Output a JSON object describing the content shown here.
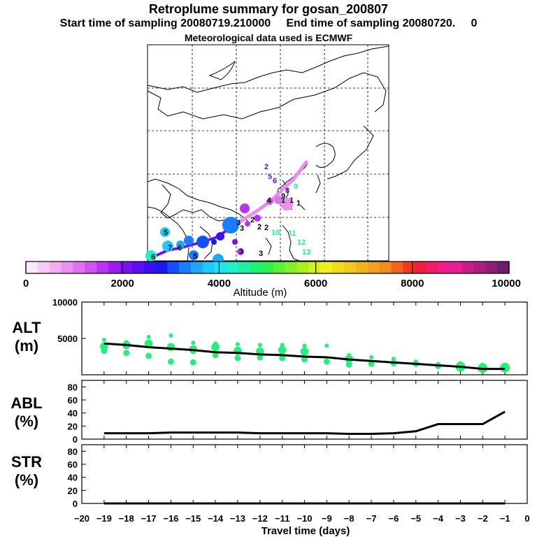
{
  "titles": {
    "line1": "Retroplume summary for gosan_200807",
    "line2": "Start time of sampling 20080719.210000     End time of sampling 20080720.     0",
    "line3": "Meteorological data used is ECMWF"
  },
  "colorbar": {
    "label": "Altitude  (m)",
    "tick_labels": [
      "0",
      "2000",
      "4000",
      "6000",
      "8000",
      "10000"
    ],
    "min": 0,
    "max": 10000,
    "colors": [
      "#fbe6fb",
      "#f6caf6",
      "#f0aef0",
      "#e891ee",
      "#dd74ee",
      "#cf55ee",
      "#b934ee",
      "#9a1cee",
      "#7a10ee",
      "#5a10ee",
      "#3a10ee",
      "#1a1aee",
      "#1450ff",
      "#1a7cff",
      "#1fa6ff",
      "#20c8ff",
      "#1ee6f0",
      "#1ef0c8",
      "#1ef0a0",
      "#1ef078",
      "#30f050",
      "#5af03c",
      "#82f02a",
      "#aaf01e",
      "#d2f01e",
      "#f0f01e",
      "#f0dc1e",
      "#f0c81e",
      "#f0b41e",
      "#f0a01e",
      "#f08c1e",
      "#f0641e",
      "#f03c1e",
      "#f01e3c",
      "#f01e64",
      "#f01e8c",
      "#e61e96",
      "#c81e8c",
      "#aa1e82",
      "#8c1e78",
      "#6e1e6e"
    ]
  },
  "map": {
    "label_numbers": [
      "2",
      "5",
      "6",
      "8",
      "9",
      "1",
      "1",
      "1",
      "2",
      "2",
      "2",
      "3",
      "3",
      "3",
      "5",
      "6",
      "6",
      "5",
      "4",
      "7",
      "10",
      "11",
      "12",
      "13",
      "3",
      "9"
    ]
  },
  "chart_data": [
    {
      "type": "scatter",
      "name": "ALT",
      "title": "ALT (m)",
      "ylabel": "ALT\n(m)",
      "xlabel": "Travel time (days)",
      "xlim": [
        -20,
        0
      ],
      "ylim": [
        0,
        10000
      ],
      "yticks": [
        5000,
        10000
      ],
      "mean_line": {
        "x": [
          -19,
          -18,
          -17,
          -16,
          -15,
          -14,
          -13,
          -12,
          -11,
          -10,
          -9,
          -8,
          -7,
          -6,
          -5,
          -4,
          -3,
          -2,
          -1
        ],
        "y": [
          4300,
          4100,
          3800,
          3600,
          3400,
          3100,
          3000,
          2800,
          2700,
          2500,
          2400,
          2100,
          1900,
          1700,
          1500,
          1300,
          1100,
          800,
          800
        ]
      },
      "clusters": [
        {
          "x": -19,
          "y": [
            4800,
            3300,
            3900
          ]
        },
        {
          "x": -18,
          "y": [
            4500,
            3000,
            4100
          ]
        },
        {
          "x": -17,
          "y": [
            5200,
            2600,
            4300
          ]
        },
        {
          "x": -16,
          "y": [
            5400,
            1800,
            3800
          ]
        },
        {
          "x": -15,
          "y": [
            4400,
            1700,
            3500,
            3100
          ]
        },
        {
          "x": -14,
          "y": [
            4300,
            2700,
            3800
          ]
        },
        {
          "x": -13,
          "y": [
            4200,
            2300,
            3300
          ]
        },
        {
          "x": -12,
          "y": [
            4100,
            2400,
            3200
          ]
        },
        {
          "x": -11,
          "y": [
            4100,
            2300,
            3400
          ]
        },
        {
          "x": -10,
          "y": [
            4000,
            2100,
            3200
          ]
        },
        {
          "x": -9,
          "y": [
            4000,
            1800
          ]
        },
        {
          "x": -8,
          "y": [
            2700,
            1400,
            2200
          ]
        },
        {
          "x": -7,
          "y": [
            2400,
            1500
          ]
        },
        {
          "x": -6,
          "y": [
            2200,
            1600
          ]
        },
        {
          "x": -5,
          "y": [
            1800,
            1500
          ]
        },
        {
          "x": -4,
          "y": [
            1500,
            1200
          ]
        },
        {
          "x": -3,
          "y": [
            1300,
            1100
          ]
        },
        {
          "x": -2,
          "y": [
            1100,
            900
          ]
        },
        {
          "x": -1,
          "y": [
            900,
            1000
          ]
        }
      ]
    },
    {
      "type": "line",
      "name": "ABL",
      "ylabel": "ABL\n(%)",
      "xlim": [
        -20,
        0
      ],
      "ylim": [
        0,
        90
      ],
      "yticks": [
        0,
        20,
        40,
        60,
        80
      ],
      "x": [
        -19,
        -18,
        -17,
        -16,
        -15,
        -14,
        -13,
        -12,
        -11,
        -10,
        -9,
        -8,
        -7,
        -6,
        -5,
        -4,
        -3,
        -2,
        -1
      ],
      "y": [
        9,
        9,
        9,
        10,
        10,
        10,
        10,
        9,
        9,
        9,
        9,
        8,
        8,
        9,
        12,
        23,
        23,
        23,
        42
      ]
    },
    {
      "type": "line",
      "name": "STR",
      "ylabel": "STR\n(%)",
      "xlim": [
        -20,
        0
      ],
      "ylim": [
        0,
        90
      ],
      "yticks": [
        0,
        20,
        40,
        60,
        80
      ],
      "xticks": [
        -20,
        -19,
        -18,
        -17,
        -16,
        -15,
        -14,
        -13,
        -12,
        -11,
        -10,
        -9,
        -8,
        -7,
        -6,
        -5,
        -4,
        -3,
        -2,
        -1,
        0
      ],
      "x": [
        -19,
        -18,
        -17,
        -16,
        -15,
        -14,
        -13,
        -12,
        -11,
        -10,
        -9,
        -8,
        -7,
        -6,
        -5,
        -4,
        -3,
        -2,
        -1
      ],
      "y": [
        0,
        0,
        0,
        0,
        0,
        0,
        0,
        0,
        0,
        0,
        0,
        0,
        0,
        0,
        0,
        0,
        0,
        0,
        0
      ]
    }
  ]
}
